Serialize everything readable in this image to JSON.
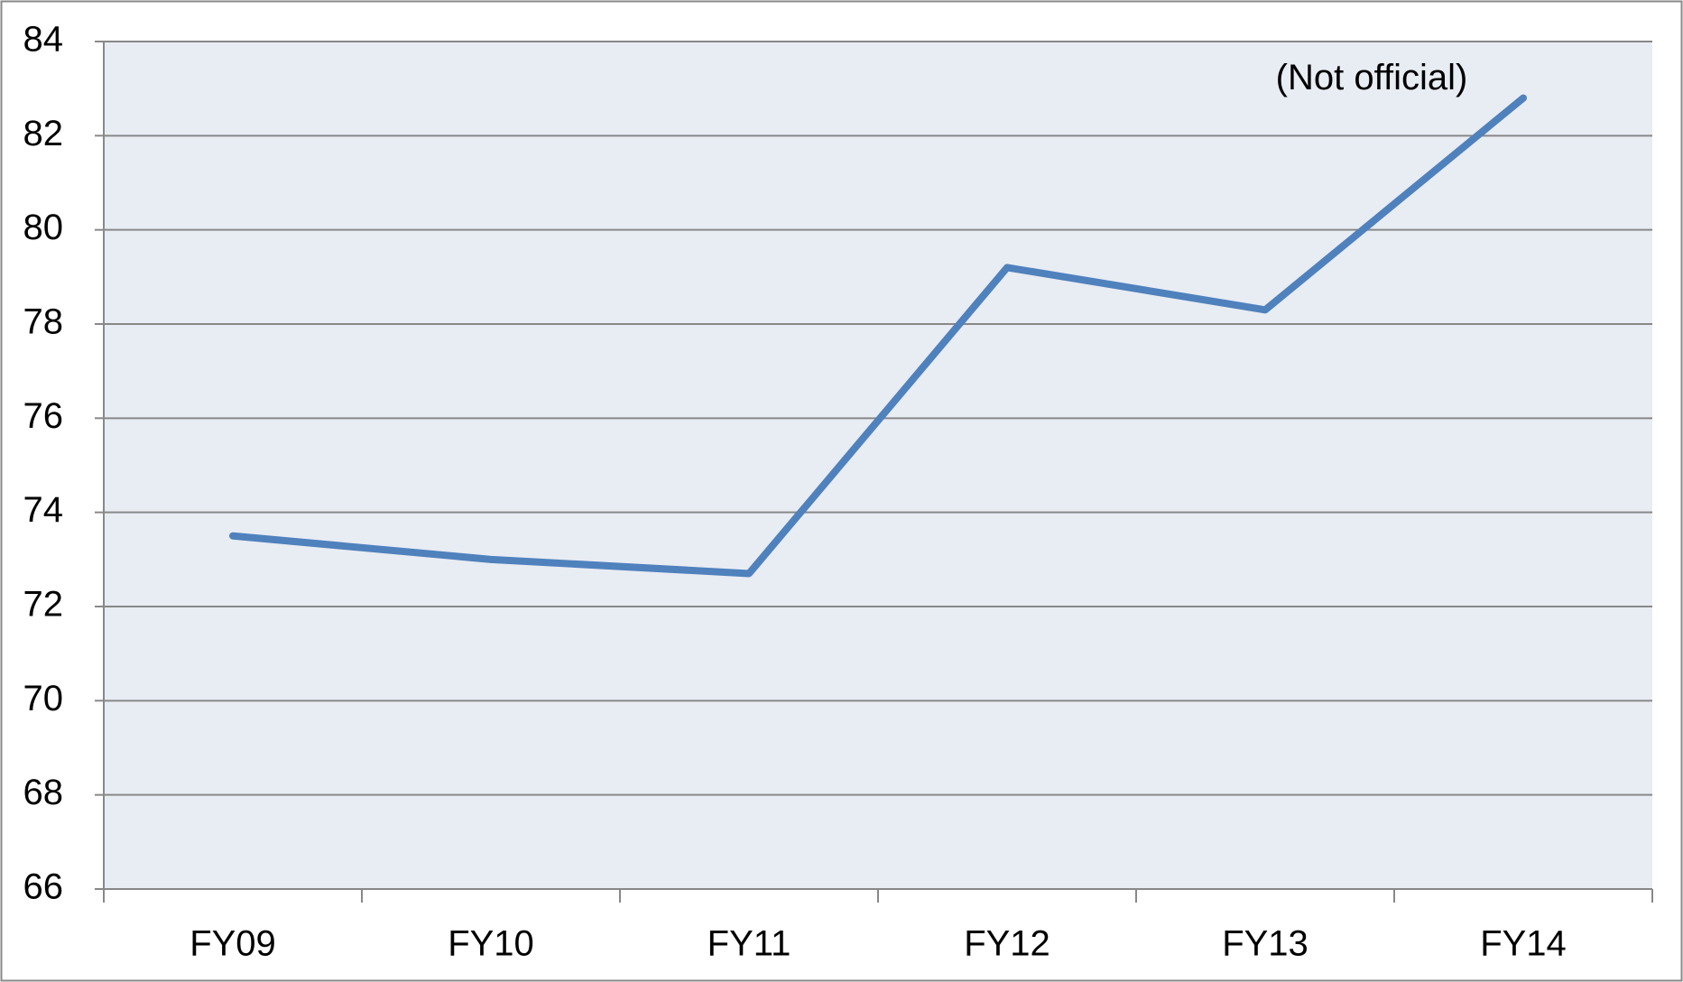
{
  "chart_data": {
    "type": "line",
    "categories": [
      "FY09",
      "FY10",
      "FY11",
      "FY12",
      "FY13",
      "FY14"
    ],
    "series": [
      {
        "color": "#4f81bd",
        "values": [
          73.5,
          73.0,
          72.7,
          79.2,
          78.3,
          82.8
        ]
      }
    ],
    "annotation": "(Not official)",
    "ylim": [
      66,
      84
    ],
    "yticks": [
      66,
      68,
      70,
      72,
      74,
      76,
      78,
      80,
      82,
      84
    ],
    "grid": true
  }
}
